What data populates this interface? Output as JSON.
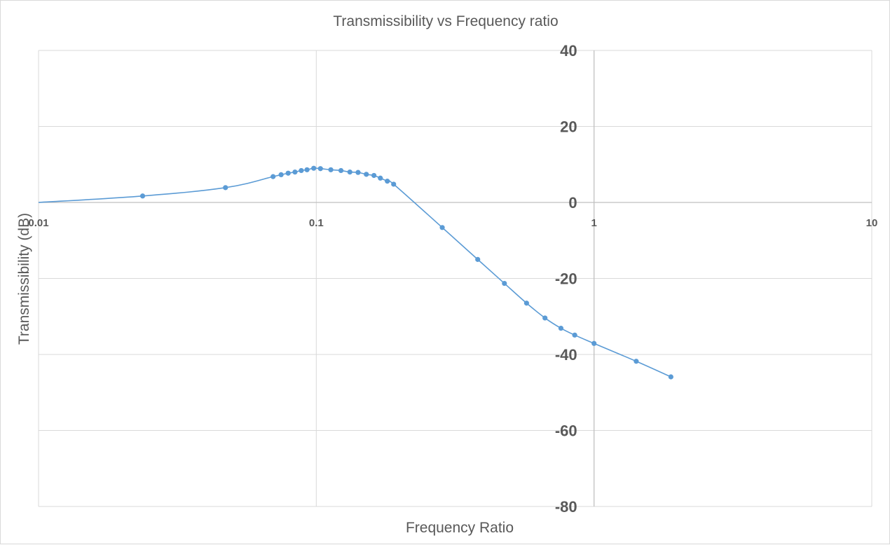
{
  "chart_data": {
    "type": "scatter",
    "title": "Transmissibility vs Frequency ratio",
    "xlabel": "Frequency Ratio",
    "ylabel": "Transmissibility (dB)",
    "xscale": "log",
    "xlim": [
      0.01,
      10
    ],
    "ylim": [
      -80,
      40
    ],
    "xticks": [
      0.01,
      0.1,
      1,
      10
    ],
    "xtick_labels": [
      "0.01",
      "0.1",
      "1",
      "10"
    ],
    "yticks": [
      40,
      20,
      0,
      -20,
      -40,
      -60,
      -80
    ],
    "ytick_labels": [
      "40",
      "20",
      "0",
      "-20",
      "-40",
      "-60",
      "-80"
    ],
    "grid": true,
    "legend": "none",
    "line_style": "smoothed line with markers",
    "series_color": "#5b9bd5",
    "series": [
      {
        "x": [
          0.01,
          0.0237,
          0.0471,
          0.0699,
          0.0747,
          0.0792,
          0.0838,
          0.0883,
          0.0926,
          0.0979,
          0.1035,
          0.1128,
          0.1227,
          0.1321,
          0.1414,
          0.1514,
          0.1613,
          0.1701,
          0.1802,
          0.1899,
          0.2841,
          0.3813,
          0.4757,
          0.5716,
          0.6659,
          0.7601,
          0.8521,
          1.0,
          1.4189,
          1.8913
        ],
        "y": [
          0.0,
          1.7,
          3.9,
          6.8,
          7.3,
          7.7,
          8.0,
          8.4,
          8.6,
          9.0,
          8.9,
          8.6,
          8.4,
          8.0,
          7.9,
          7.4,
          7.1,
          6.4,
          5.6,
          4.8,
          -6.6,
          -15.0,
          -21.3,
          -26.5,
          -30.4,
          -33.1,
          -34.9,
          -37.1,
          -41.8,
          -45.9
        ]
      }
    ]
  }
}
